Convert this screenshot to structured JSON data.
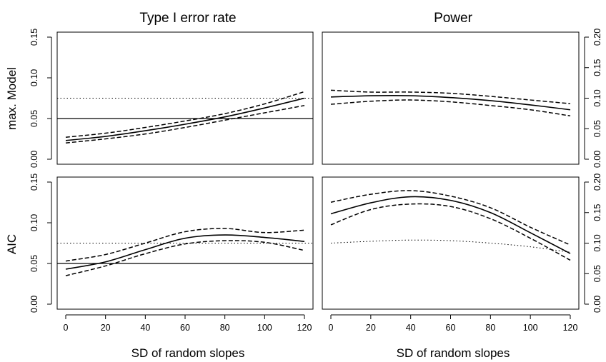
{
  "figure": {
    "col_titles": [
      "Type I error rate",
      "Power"
    ],
    "row_labels": [
      "max. Model",
      "AIC"
    ],
    "xlabel": "SD of random slopes"
  },
  "chart_data": [
    {
      "type": "line",
      "row_label": "max. Model",
      "title": "Type I error rate",
      "xlabel": "",
      "ylabel": "max. Model",
      "xlim": [
        0,
        120
      ],
      "ylim": [
        0,
        0.15
      ],
      "xticks": [],
      "yticks": [
        0.0,
        0.05,
        0.1,
        0.15
      ],
      "ytick_labels": [
        "0.00",
        "0.05",
        "0.10",
        "0.15"
      ],
      "y_axis_side": "left",
      "hlines": [
        {
          "y": 0.05,
          "style": "solid"
        },
        {
          "y": 0.075,
          "style": "dotted"
        }
      ],
      "x": [
        0,
        20,
        40,
        60,
        80,
        100,
        120
      ],
      "series": [
        {
          "style": "solid",
          "values": [
            0.023,
            0.028,
            0.035,
            0.043,
            0.052,
            0.063,
            0.075
          ]
        },
        {
          "style": "dashed",
          "values": [
            0.027,
            0.032,
            0.039,
            0.047,
            0.056,
            0.068,
            0.083
          ]
        },
        {
          "style": "dashed",
          "values": [
            0.02,
            0.025,
            0.031,
            0.039,
            0.048,
            0.057,
            0.066
          ]
        }
      ]
    },
    {
      "type": "line",
      "row_label": "max. Model",
      "title": "Power",
      "xlabel": "",
      "ylabel": "",
      "xlim": [
        0,
        120
      ],
      "ylim": [
        0,
        0.2
      ],
      "xticks": [],
      "yticks": [
        0.0,
        0.05,
        0.1,
        0.15,
        0.2
      ],
      "ytick_labels": [
        "0.00",
        "0.05",
        "0.10",
        "0.15",
        "0.20"
      ],
      "y_axis_side": "right",
      "hlines": [],
      "x": [
        0,
        20,
        40,
        60,
        80,
        100,
        120
      ],
      "series": [
        {
          "style": "solid",
          "values": [
            0.102,
            0.104,
            0.104,
            0.101,
            0.096,
            0.089,
            0.081
          ]
        },
        {
          "style": "dashed",
          "values": [
            0.113,
            0.11,
            0.11,
            0.108,
            0.103,
            0.097,
            0.091
          ]
        },
        {
          "style": "dashed",
          "values": [
            0.09,
            0.095,
            0.097,
            0.094,
            0.088,
            0.081,
            0.071
          ]
        }
      ]
    },
    {
      "type": "line",
      "row_label": "AIC",
      "title": "",
      "xlabel": "SD of random slopes",
      "ylabel": "AIC",
      "xlim": [
        0,
        120
      ],
      "ylim": [
        0,
        0.15
      ],
      "xticks": [
        0,
        20,
        40,
        60,
        80,
        100,
        120
      ],
      "yticks": [
        0.0,
        0.05,
        0.1,
        0.15
      ],
      "ytick_labels": [
        "0.00",
        "0.05",
        "0.10",
        "0.15"
      ],
      "y_axis_side": "left",
      "hlines": [
        {
          "y": 0.05,
          "style": "solid"
        },
        {
          "y": 0.075,
          "style": "dotted"
        }
      ],
      "x": [
        0,
        20,
        40,
        60,
        80,
        100,
        120
      ],
      "series": [
        {
          "style": "solid",
          "values": [
            0.043,
            0.052,
            0.067,
            0.081,
            0.085,
            0.082,
            0.077
          ]
        },
        {
          "style": "dashed",
          "values": [
            0.053,
            0.061,
            0.075,
            0.089,
            0.093,
            0.088,
            0.091
          ]
        },
        {
          "style": "dashed",
          "values": [
            0.035,
            0.047,
            0.062,
            0.074,
            0.078,
            0.076,
            0.066
          ]
        }
      ]
    },
    {
      "type": "line",
      "row_label": "AIC",
      "title": "",
      "xlabel": "SD of random slopes",
      "ylabel": "",
      "xlim": [
        0,
        120
      ],
      "ylim": [
        0,
        0.2
      ],
      "xticks": [
        0,
        20,
        40,
        60,
        80,
        100,
        120
      ],
      "yticks": [
        0.0,
        0.05,
        0.1,
        0.15,
        0.2
      ],
      "ytick_labels": [
        "0.00",
        "0.05",
        "0.10",
        "0.15",
        "0.20"
      ],
      "y_axis_side": "right",
      "hlines": [],
      "x": [
        0,
        20,
        40,
        60,
        80,
        100,
        120
      ],
      "series": [
        {
          "style": "solid",
          "values": [
            0.148,
            0.166,
            0.176,
            0.17,
            0.15,
            0.117,
            0.083
          ]
        },
        {
          "style": "dashed",
          "values": [
            0.167,
            0.18,
            0.186,
            0.177,
            0.158,
            0.126,
            0.097
          ]
        },
        {
          "style": "dashed",
          "values": [
            0.13,
            0.155,
            0.164,
            0.16,
            0.14,
            0.108,
            0.072
          ]
        },
        {
          "style": "dotted",
          "values": [
            0.1,
            0.103,
            0.105,
            0.104,
            0.1,
            0.094,
            0.085
          ]
        }
      ]
    }
  ]
}
